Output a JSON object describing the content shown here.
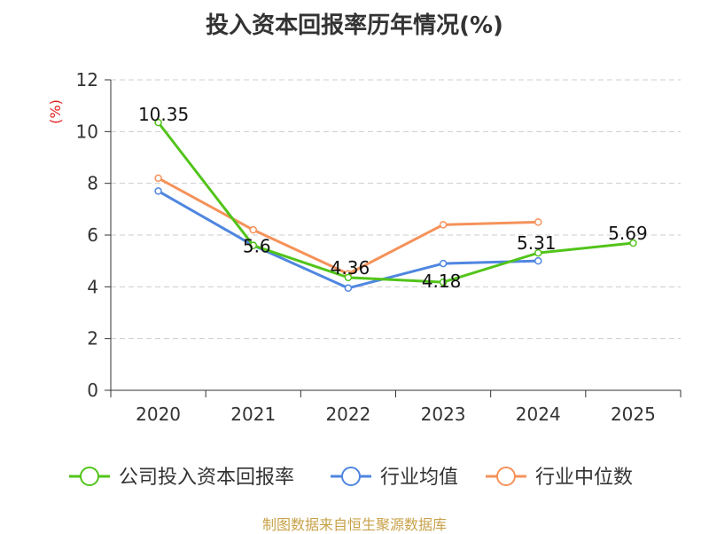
{
  "chart_data": {
    "type": "line",
    "title": "投入资本回报率历年情况(%)",
    "xlabel": "",
    "ylabel": "(%)",
    "categories": [
      "2020",
      "2021",
      "2022",
      "2023",
      "2024",
      "2025"
    ],
    "ylim": [
      0,
      12
    ],
    "yticks": [
      0,
      2,
      4,
      6,
      8,
      10,
      12
    ],
    "grid": "horizontal-dashed",
    "legend_position": "bottom",
    "series": [
      {
        "name": "公司投入资本回报率",
        "color": "#52c41a",
        "values": [
          10.35,
          5.6,
          4.36,
          4.18,
          5.31,
          5.69
        ],
        "data_labels": [
          "10.35",
          "5.6",
          "4.36",
          "4.18",
          "5.31",
          "5.69"
        ]
      },
      {
        "name": "行业均值",
        "color": "#4f86e0",
        "values": [
          7.7,
          5.6,
          3.95,
          4.9,
          5.0,
          null
        ]
      },
      {
        "name": "行业中位数",
        "color": "#f5925a",
        "values": [
          8.2,
          6.2,
          4.5,
          6.4,
          6.5,
          null
        ]
      }
    ]
  },
  "footer": {
    "source": "制图数据来自恒生聚源数据库"
  }
}
